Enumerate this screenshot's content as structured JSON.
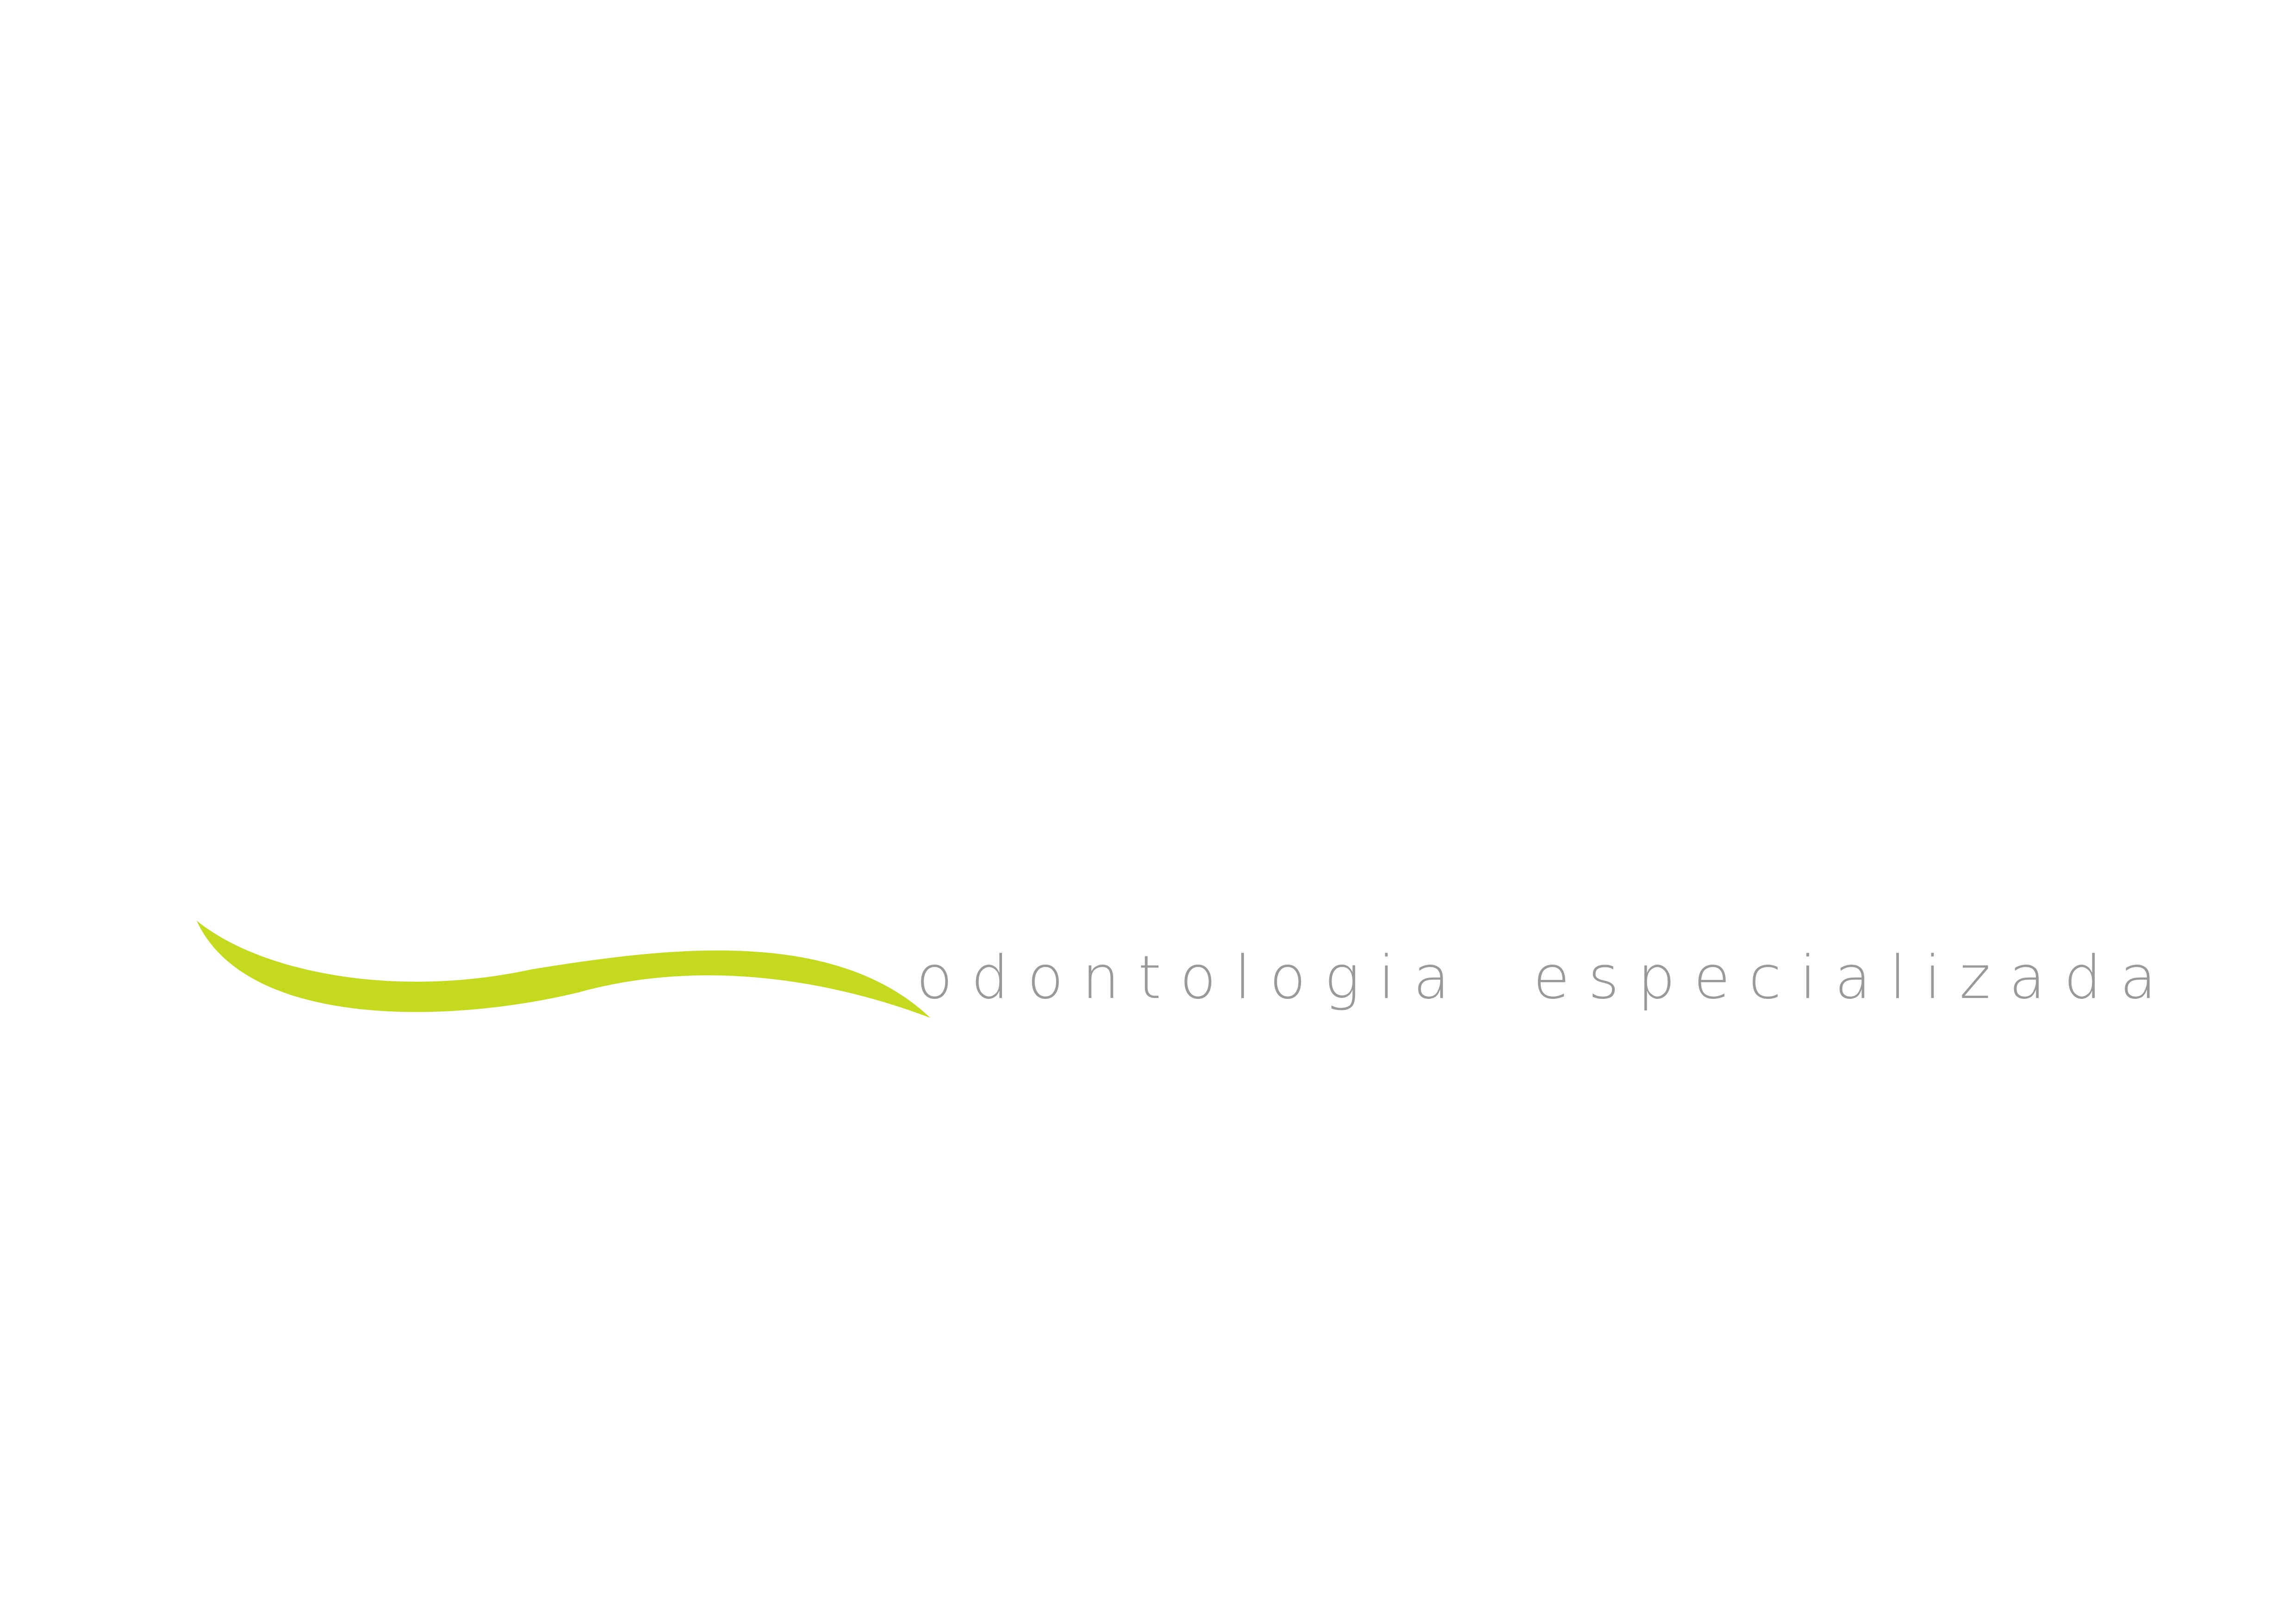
{
  "logo": {
    "tagline": "odontologia especializada",
    "swoosh_color": "#c4da1f",
    "tagline_color": "#999999"
  }
}
